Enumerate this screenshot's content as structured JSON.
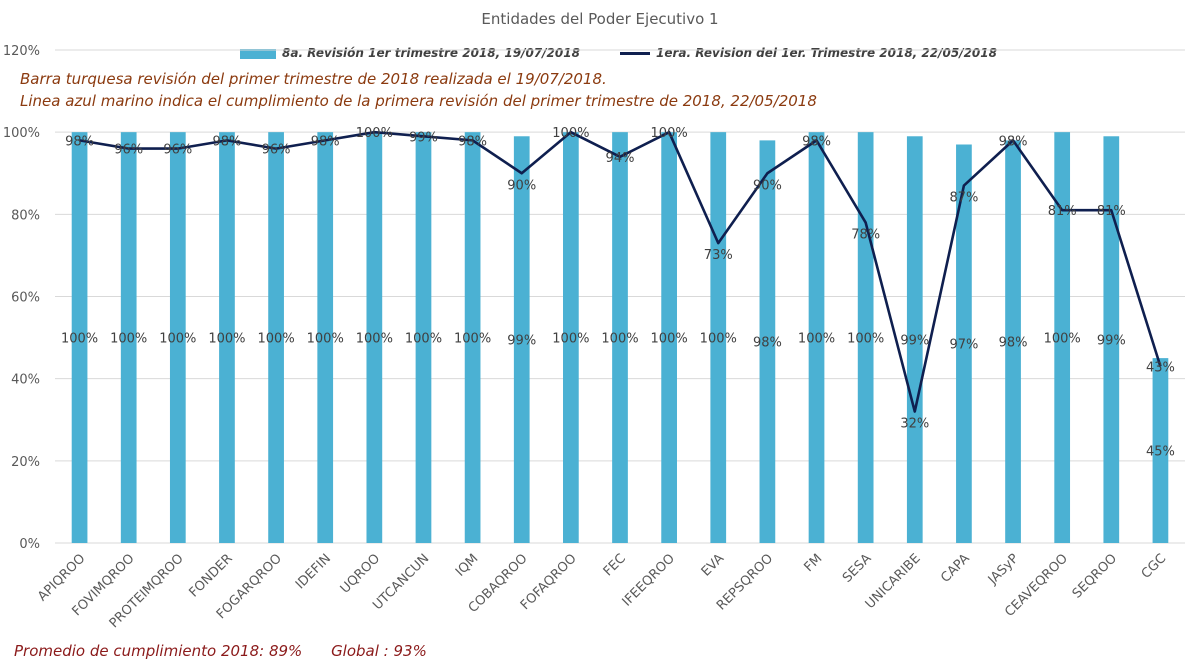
{
  "chart_data": {
    "type": "bar",
    "title": "Entidades del Poder Ejecutivo 1",
    "categories": [
      "APIQROO",
      "FOVIMQROO",
      "PROTEIMQROO",
      "FONDER",
      "FOGARQROO",
      "IDEFIN",
      "UQROO",
      "UTCANCUN",
      "IQM",
      "COBAQROO",
      "FOFAQROO",
      "FEC",
      "IFEEQROO",
      "EVA",
      "REPSQROO",
      "FM",
      "SESA",
      "UNICARIBE",
      "CAPA",
      "JASyP",
      "CEAVEQROO",
      "SEQROO",
      "CGC"
    ],
    "series": [
      {
        "name": "8a. Revisión 1er trimestre 2018, 19/07/2018",
        "kind": "bar",
        "color": "#4bb1d3",
        "values": [
          100,
          100,
          100,
          100,
          100,
          100,
          100,
          100,
          100,
          99,
          100,
          100,
          100,
          100,
          98,
          100,
          100,
          99,
          97,
          98,
          100,
          99,
          45
        ]
      },
      {
        "name": "1era. Revision del 1er. Trimestre 2018, 22/05/2018",
        "kind": "line",
        "color": "#0f1f4f",
        "values": [
          98,
          96,
          96,
          98,
          96,
          98,
          100,
          99,
          98,
          90,
          100,
          94,
          100,
          73,
          90,
          98,
          78,
          32,
          87,
          98,
          81,
          81,
          43
        ]
      }
    ],
    "ylim": [
      0,
      120
    ],
    "yticks": [
      "0%",
      "20%",
      "40%",
      "60%",
      "80%",
      "100%",
      "120%"
    ],
    "grid": true,
    "legend_position": "top"
  },
  "notes": [
    "Barra turquesa  revisión  del  primer  trimestre  de  2018  realizada  el  19/07/2018.",
    "Linea  azul  marino  indica  el  cumplimiento  de  la primera  revisión  del  primer  trimestre  de  2018,   22/05/2018"
  ],
  "footer": {
    "promedio": "Promedio  de  cumplimiento  2018:  89%",
    "global": "Global  :  93%"
  }
}
